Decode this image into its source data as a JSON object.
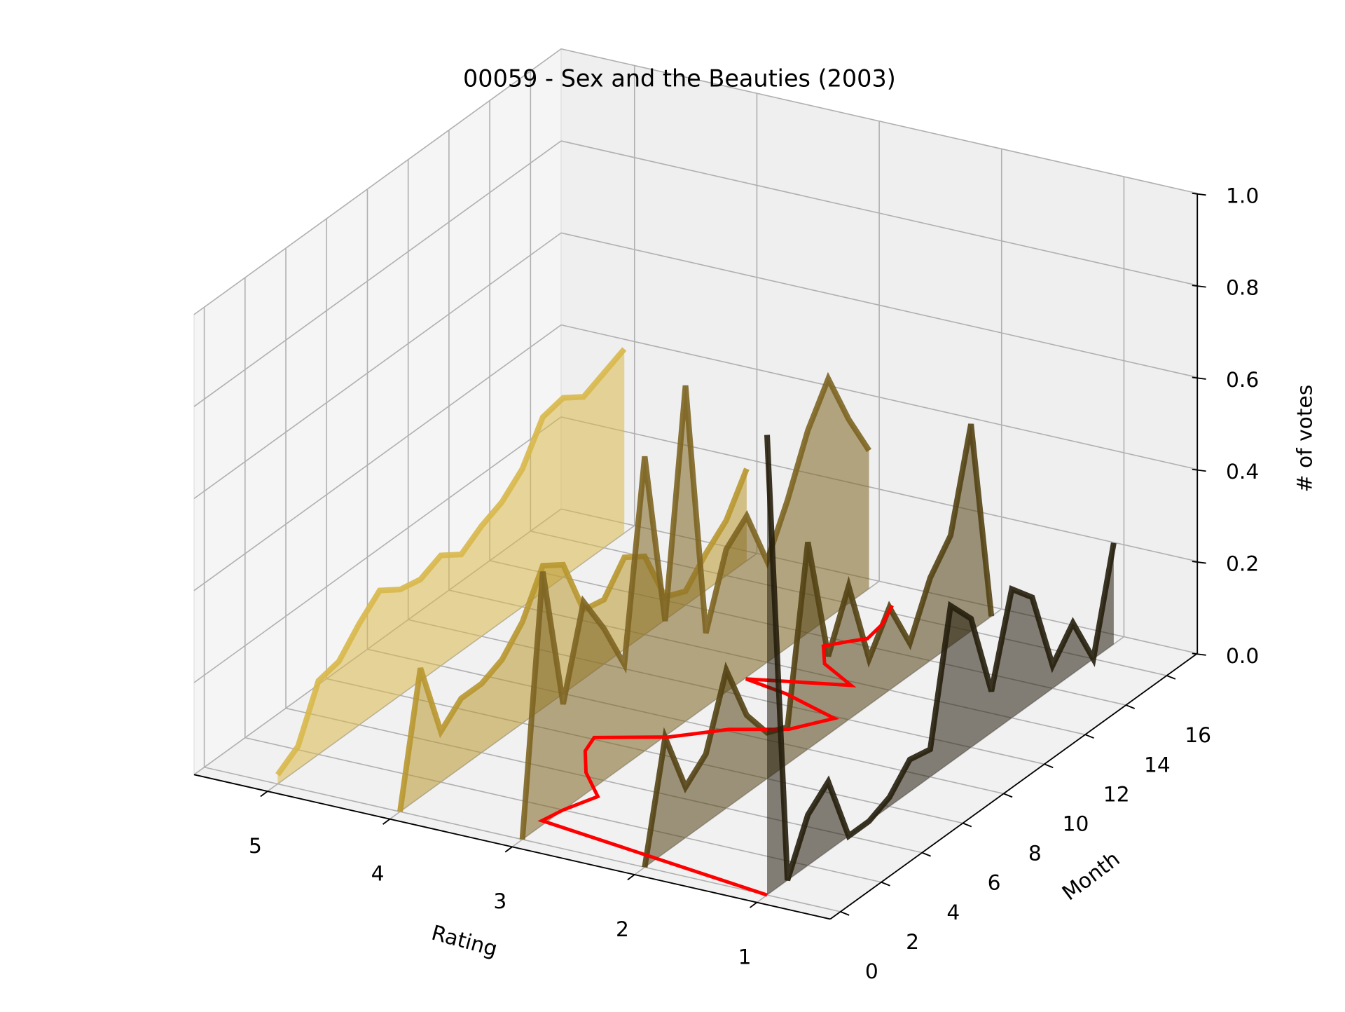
{
  "chart_data": {
    "type": "line3d",
    "title": "00059 - Sex and the Beauties (2003)",
    "xlabel": "Rating",
    "ylabel": "Month",
    "zlabel": "# of votes",
    "xlim": [
      0.4,
      5.6
    ],
    "ylim": [
      -0.5,
      17.5
    ],
    "zlim": [
      0,
      1
    ],
    "xticks": [
      1,
      2,
      3,
      4,
      5
    ],
    "yticks": [
      0,
      2,
      4,
      6,
      8,
      10,
      12,
      14,
      16
    ],
    "zticks": [
      {
        "value": 0,
        "label": "0.0"
      },
      {
        "value": 0.2,
        "label": "0.2"
      },
      {
        "value": 0.4,
        "label": "0.4"
      },
      {
        "value": 0.6,
        "label": "0.6"
      },
      {
        "value": 0.8,
        "label": "0.8"
      },
      {
        "value": 1,
        "label": "1.0"
      }
    ],
    "grid": true,
    "fill_alpha": 0.55,
    "months": [
      0,
      1,
      2,
      3,
      4,
      5,
      6,
      7,
      8,
      9,
      10,
      11,
      12,
      13,
      14,
      15,
      16,
      17
    ],
    "series": [
      {
        "x": 5,
        "color": "#d8b84a",
        "values": [
          0.02,
          0.05,
          0.16,
          0.17,
          0.22,
          0.26,
          0.23,
          0.22,
          0.24,
          0.21,
          0.24,
          0.26,
          0.3,
          0.38,
          0.39,
          0.36,
          0.38,
          0.4
        ]
      },
      {
        "x": 4,
        "color": "#b8972f",
        "values": [
          0.0,
          0.28,
          0.11,
          0.15,
          0.15,
          0.17,
          0.22,
          0.31,
          0.28,
          0.15,
          0.14,
          0.2,
          0.17,
          0.05,
          0.03,
          0.08,
          0.12,
          0.2
        ]
      },
      {
        "x": 3,
        "color": "#7d6421",
        "values": [
          0.0,
          0.55,
          0.23,
          0.42,
          0.33,
          0.22,
          0.64,
          0.25,
          0.73,
          0.16,
          0.31,
          0.35,
          0.22,
          0.32,
          0.44,
          0.52,
          0.4,
          0.3
        ]
      },
      {
        "x": 2,
        "color": "#534214",
        "values": [
          0.0,
          0.25,
          0.11,
          0.15,
          0.3,
          0.17,
          0.1,
          0.08,
          0.45,
          0.17,
          0.29,
          0.1,
          0.18,
          0.07,
          0.18,
          0.24,
          0.45,
          0.0
        ]
      },
      {
        "x": 1,
        "color": "#251e0c",
        "values": [
          1.0,
          0.0,
          0.11,
          0.15,
          0.0,
          0.0,
          0.02,
          0.07,
          0.06,
          0.34,
          0.28,
          0.09,
          0.28,
          0.23,
          0.05,
          0.11,
          0.0,
          0.22
        ]
      }
    ],
    "mean_line": {
      "color": "#ff0000",
      "x": [
        0,
        1.2,
        2,
        3.1,
        4.2,
        5.3,
        6.1,
        7,
        8.1,
        8.8,
        9.9,
        10.6,
        10.9,
        11.8,
        12.6,
        13.5,
        14,
        14.4,
        15.3,
        16.4
      ],
      "ratings": [
        1,
        3.04,
        3,
        2.9,
        3.18,
        3.37,
        3.43,
        2.97,
        2.66,
        2.29,
        2.1,
        2.61,
        2.99,
        2.28,
        2.63,
        2.79,
        2.68,
        2.58,
        2.61,
        2.71
      ]
    }
  }
}
